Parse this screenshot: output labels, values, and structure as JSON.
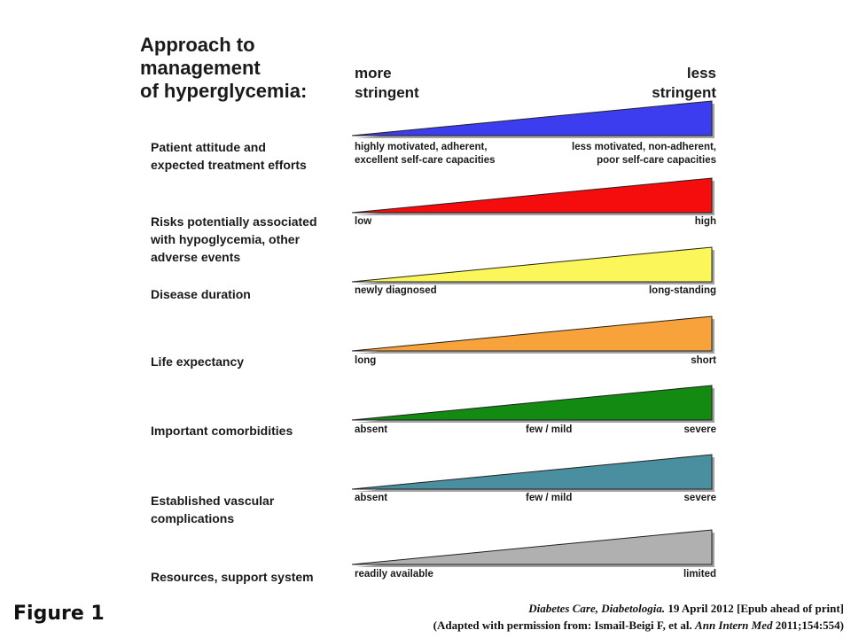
{
  "title_line1": "Approach to management",
  "title_line2": "of hyperglycemia:",
  "axis": {
    "left_line1": "more",
    "left_line2": "stringent",
    "right_line1": "less",
    "right_line2": "stringent"
  },
  "rows": [
    {
      "factor_lines": [
        "Patient attitude and",
        "expected treatment efforts"
      ],
      "color": "#3d3df0",
      "left": [
        "highly motivated, adherent,",
        "excellent self-care capacities"
      ],
      "mid": "",
      "right": [
        "less motivated, non-adherent,",
        "poor self-care capacities"
      ]
    },
    {
      "factor_lines": [
        "Risks potentially associated",
        "with hypoglycemia, other",
        "adverse events"
      ],
      "color": "#f50d0d",
      "left": [
        "low"
      ],
      "mid": "",
      "right": [
        "high"
      ]
    },
    {
      "factor_lines": [
        "Disease duration"
      ],
      "color": "#fbf75a",
      "left": [
        "newly diagnosed"
      ],
      "mid": "",
      "right": [
        "long-standing"
      ]
    },
    {
      "factor_lines": [
        "Life expectancy"
      ],
      "color": "#f7a23a",
      "left": [
        "long"
      ],
      "mid": "",
      "right": [
        "short"
      ]
    },
    {
      "factor_lines": [
        "Important comorbidities"
      ],
      "color": "#138a12",
      "left": [
        "absent"
      ],
      "mid": "few / mild",
      "right": [
        "severe"
      ]
    },
    {
      "factor_lines": [
        "Established vascular",
        "complications"
      ],
      "color": "#4a8fa0",
      "left": [
        "absent"
      ],
      "mid": "few / mild",
      "right": [
        "severe"
      ]
    },
    {
      "factor_lines": [
        "Resources, support system"
      ],
      "color": "#b0b0b0",
      "left": [
        "readily available"
      ],
      "mid": "",
      "right": [
        "limited"
      ]
    }
  ],
  "figure_label": "Figure 1",
  "citation": {
    "line1_journal": "Diabetes Care, Diabetologia.",
    "line1_rest": " 19 April 2012 [Epub ahead of print]",
    "line2_pre": "(Adapted with permission from: Ismail-Beigi F, et al. ",
    "line2_journal": "Ann Intern Med",
    "line2_post": " 2011;154:554)"
  }
}
